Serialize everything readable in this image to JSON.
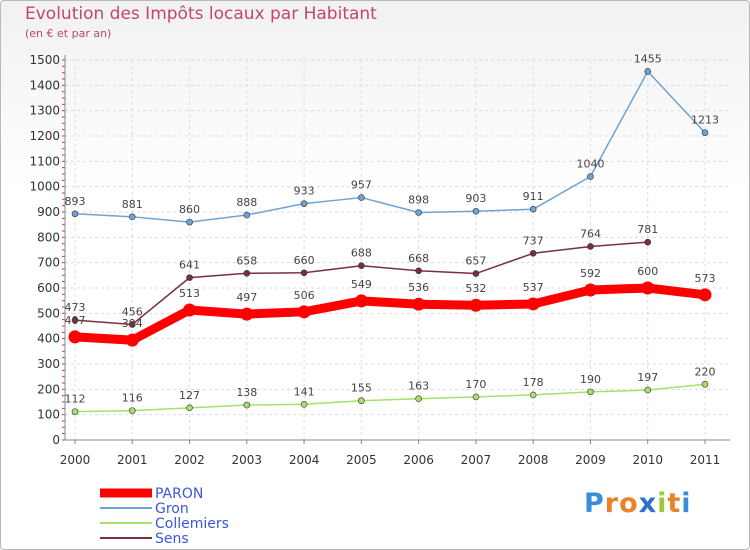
{
  "title": "Evolution des Impôts locaux par Habitant",
  "subtitle": "(en € et par an)",
  "logo_text": "Proxiti",
  "chart_data": {
    "type": "line",
    "title": "Evolution des Impôts locaux par Habitant",
    "subtitle": "(en € et par an)",
    "xlabel": "",
    "ylabel": "",
    "x": [
      "2000",
      "2001",
      "2002",
      "2003",
      "2004",
      "2005",
      "2006",
      "2007",
      "2008",
      "2009",
      "2010",
      "2011"
    ],
    "yticks": [
      "0",
      "100",
      "200",
      "300",
      "400",
      "500",
      "600",
      "700",
      "800",
      "900",
      "1000",
      "1100",
      "1200",
      "1300",
      "1400",
      "1500"
    ],
    "ylim": [
      0,
      1500
    ],
    "grid": true,
    "legend_position": "bottom-left",
    "series": [
      {
        "name": "PARON",
        "color": "#ff0000",
        "line_width": 9,
        "values": [
          407,
          394,
          513,
          497,
          506,
          549,
          536,
          532,
          537,
          592,
          600,
          573
        ],
        "labels": [
          "407",
          "394",
          "513",
          "497",
          "506",
          "549",
          "536",
          "532",
          "537",
          "592",
          "600",
          "573"
        ]
      },
      {
        "name": "Gron",
        "color": "#6fa3d4",
        "line_width": 1.5,
        "values": [
          893,
          881,
          860,
          888,
          933,
          957,
          898,
          903,
          911,
          1040,
          1455,
          1213
        ],
        "labels": [
          "893",
          "881",
          "860",
          "888",
          "933",
          "957",
          "898",
          "903",
          "911",
          "1040",
          "1455",
          "1213"
        ]
      },
      {
        "name": "Collemiers",
        "color": "#a6e06a",
        "line_width": 1.5,
        "values": [
          112,
          116,
          127,
          138,
          141,
          155,
          163,
          170,
          178,
          190,
          197,
          220
        ],
        "labels": [
          "112",
          "116",
          "127",
          "138",
          "141",
          "155",
          "163",
          "170",
          "178",
          "190",
          "197",
          "220"
        ]
      },
      {
        "name": "Sens",
        "color": "#7a2f3d",
        "line_width": 1.5,
        "values": [
          473,
          456,
          641,
          658,
          660,
          688,
          668,
          657,
          737,
          764,
          781,
          null
        ],
        "labels": [
          "473",
          "456",
          "641",
          "658",
          "660",
          "688",
          "668",
          "657",
          "737",
          "764",
          "781",
          null
        ]
      }
    ]
  }
}
